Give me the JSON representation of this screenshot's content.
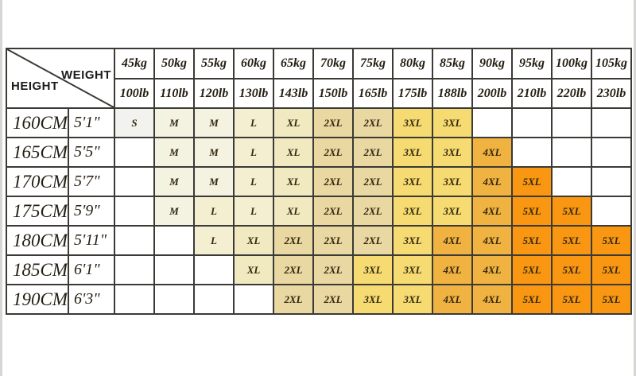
{
  "chart_data": {
    "type": "table",
    "corner": {
      "weight_label": "WEIGHT",
      "height_label": "HEIGHT"
    },
    "weights_kg": [
      "45kg",
      "50kg",
      "55kg",
      "60kg",
      "65kg",
      "70kg",
      "75kg",
      "80kg",
      "85kg",
      "90kg",
      "95kg",
      "100kg",
      "105kg"
    ],
    "weights_lb": [
      "100lb",
      "110lb",
      "120lb",
      "130lb",
      "143lb",
      "150lb",
      "165lb",
      "175lb",
      "188lb",
      "200lb",
      "210lb",
      "220lb",
      "230lb"
    ],
    "rows": [
      {
        "height_cm": "160CM",
        "height_ft": "5'1\"",
        "sizes": [
          "S",
          "M",
          "M",
          "L",
          "XL",
          "2XL",
          "2XL",
          "3XL",
          "3XL",
          "",
          "",
          "",
          ""
        ]
      },
      {
        "height_cm": "165CM",
        "height_ft": "5'5\"",
        "sizes": [
          "",
          "M",
          "M",
          "L",
          "XL",
          "2XL",
          "2XL",
          "3XL",
          "3XL",
          "4XL",
          "",
          "",
          ""
        ]
      },
      {
        "height_cm": "170CM",
        "height_ft": "5'7\"",
        "sizes": [
          "",
          "M",
          "M",
          "L",
          "XL",
          "2XL",
          "2XL",
          "3XL",
          "3XL",
          "4XL",
          "5XL",
          "",
          ""
        ]
      },
      {
        "height_cm": "175CM",
        "height_ft": "5'9\"",
        "sizes": [
          "",
          "M",
          "L",
          "L",
          "XL",
          "2XL",
          "2XL",
          "3XL",
          "3XL",
          "4XL",
          "5XL",
          "5XL",
          ""
        ]
      },
      {
        "height_cm": "180CM",
        "height_ft": "5'11\"",
        "sizes": [
          "",
          "",
          "L",
          "XL",
          "2XL",
          "2XL",
          "2XL",
          "3XL",
          "4XL",
          "4XL",
          "5XL",
          "5XL",
          "5XL"
        ]
      },
      {
        "height_cm": "185CM",
        "height_ft": "6'1\"",
        "sizes": [
          "",
          "",
          "",
          "XL",
          "2XL",
          "2XL",
          "3XL",
          "3XL",
          "4XL",
          "4XL",
          "5XL",
          "5XL",
          "5XL"
        ]
      },
      {
        "height_cm": "190CM",
        "height_ft": "6'3\"",
        "sizes": [
          "",
          "",
          "",
          "",
          "2XL",
          "2XL",
          "3XL",
          "3XL",
          "4XL",
          "4XL",
          "5XL",
          "5XL",
          "5XL"
        ]
      }
    ],
    "size_colors": {
      "S": "#f2f3ee",
      "M": "#f4f2e1",
      "L": "#f4efd1",
      "XL": "#f1eac1",
      "2XL": "#e9d8a2",
      "3XL": "#f6db72",
      "4XL": "#f0b341",
      "5XL": "#f99712",
      "empty": "#ffffff"
    },
    "border_color": "#3b3a37"
  }
}
